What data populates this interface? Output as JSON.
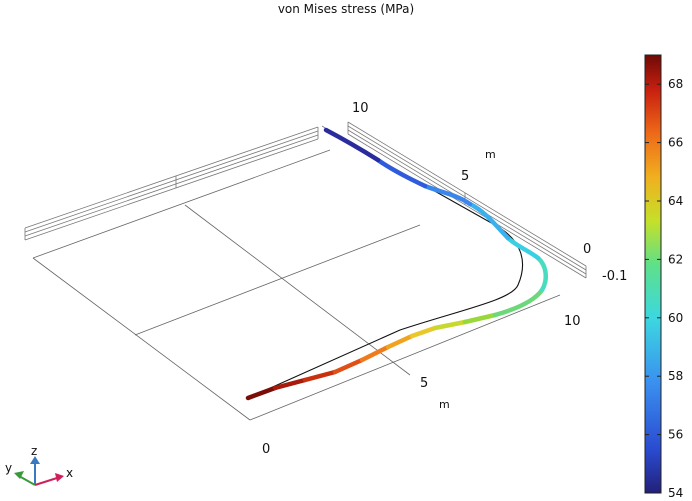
{
  "chart_data": {
    "type": "line",
    "title": "von Mises stress (MPa)",
    "view": "3D perspective",
    "axes": {
      "x": {
        "label": "m",
        "ticks": [
          "0",
          "5",
          "10"
        ]
      },
      "y": {
        "label": "m",
        "ticks": [
          "5",
          "10"
        ]
      },
      "z": {
        "label": "m",
        "ticks": [
          "0",
          "-0.1"
        ]
      }
    },
    "colorbar": {
      "range": [
        54,
        69
      ],
      "ticks": [
        "54",
        "56",
        "58",
        "60",
        "62",
        "64",
        "66",
        "68"
      ],
      "colormap": "rainbow"
    },
    "series": [
      {
        "role": "undeformed reference",
        "style": "thin black line"
      },
      {
        "role": "deformed line colored by stress",
        "stress_values_along_line": [
          69,
          68,
          67,
          66,
          65,
          64,
          63,
          62,
          61,
          60,
          59.5,
          59,
          58,
          57,
          56,
          55,
          54
        ]
      }
    ],
    "triad": {
      "labels": [
        "z",
        "y",
        "x"
      ]
    }
  }
}
